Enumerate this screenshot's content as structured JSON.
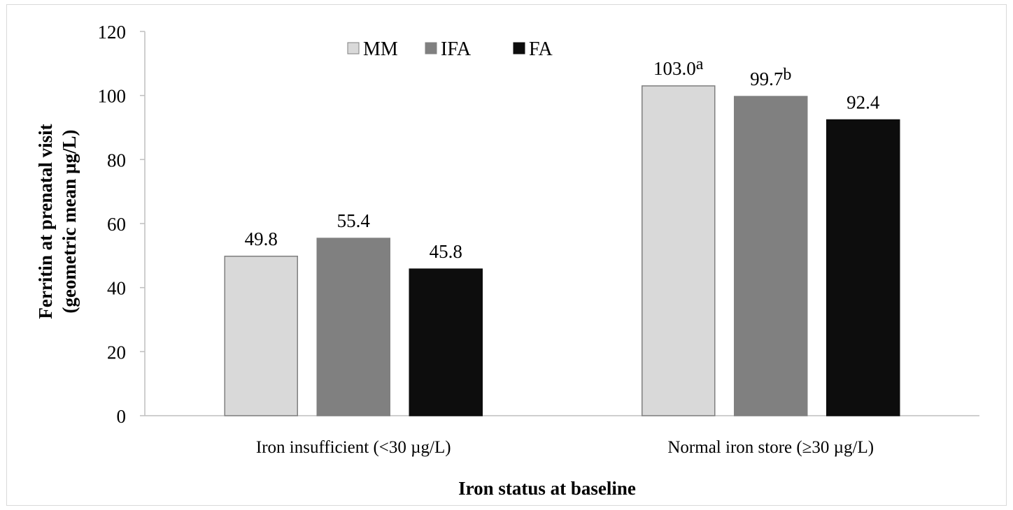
{
  "chart_data": {
    "type": "bar",
    "categories": [
      "Iron insufficient (<30 µg/L)",
      "Normal iron store (≥30 µg/L)"
    ],
    "series": [
      {
        "name": "MM",
        "values": [
          49.8,
          103.0
        ],
        "labels": [
          "49.8",
          "103.0"
        ],
        "sups": [
          "",
          "a"
        ],
        "color": "#d9d9d9",
        "stroke": "#7f7f7f"
      },
      {
        "name": "IFA",
        "values": [
          55.4,
          99.7
        ],
        "labels": [
          "55.4",
          "99.7"
        ],
        "sups": [
          "",
          "b"
        ],
        "color": "#808080",
        "stroke": "#808080"
      },
      {
        "name": "FA",
        "values": [
          45.8,
          92.4
        ],
        "labels": [
          "45.8",
          "92.4"
        ],
        "sups": [
          "",
          ""
        ],
        "color": "#0d0d0d",
        "stroke": "#0d0d0d"
      }
    ],
    "ylabel_lines": [
      "Ferritin at prenatal visit",
      "(geometric mean µg/L)"
    ],
    "xlabel": "Iron status at baseline",
    "ylim": [
      0,
      120
    ],
    "yticks": [
      0,
      20,
      40,
      60,
      80,
      100,
      120
    ],
    "grid": false,
    "legend_position": "top"
  }
}
